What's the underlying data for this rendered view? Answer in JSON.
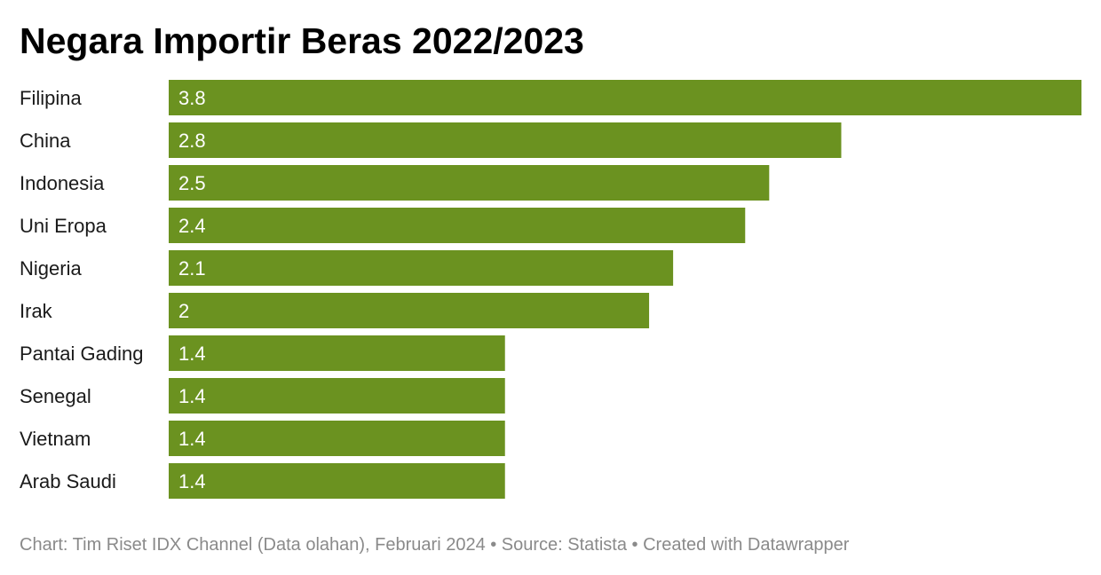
{
  "chart_data": {
    "type": "bar",
    "orientation": "horizontal",
    "title": "Negara Importir Beras 2022/2023",
    "categories": [
      "Filipina",
      "China",
      "Indonesia",
      "Uni Eropa",
      "Nigeria",
      "Irak",
      "Pantai Gading",
      "Senegal",
      "Vietnam",
      "Arab Saudi"
    ],
    "values": [
      3.8,
      2.8,
      2.5,
      2.4,
      2.1,
      2,
      1.4,
      1.4,
      1.4,
      1.4
    ],
    "value_labels": [
      "3.8",
      "2.8",
      "2.5",
      "2.4",
      "2.1",
      "2",
      "1.4",
      "1.4",
      "1.4",
      "1.4"
    ],
    "xlim": [
      0,
      3.8
    ],
    "grid": false,
    "legend": "none",
    "bar_color": "#6b9220",
    "label_color": "#ffffff"
  },
  "footer": {
    "text": "Chart: Tim Riset IDX Channel (Data olahan), Februari 2024 • Source: Statista • Created with Datawrapper"
  }
}
